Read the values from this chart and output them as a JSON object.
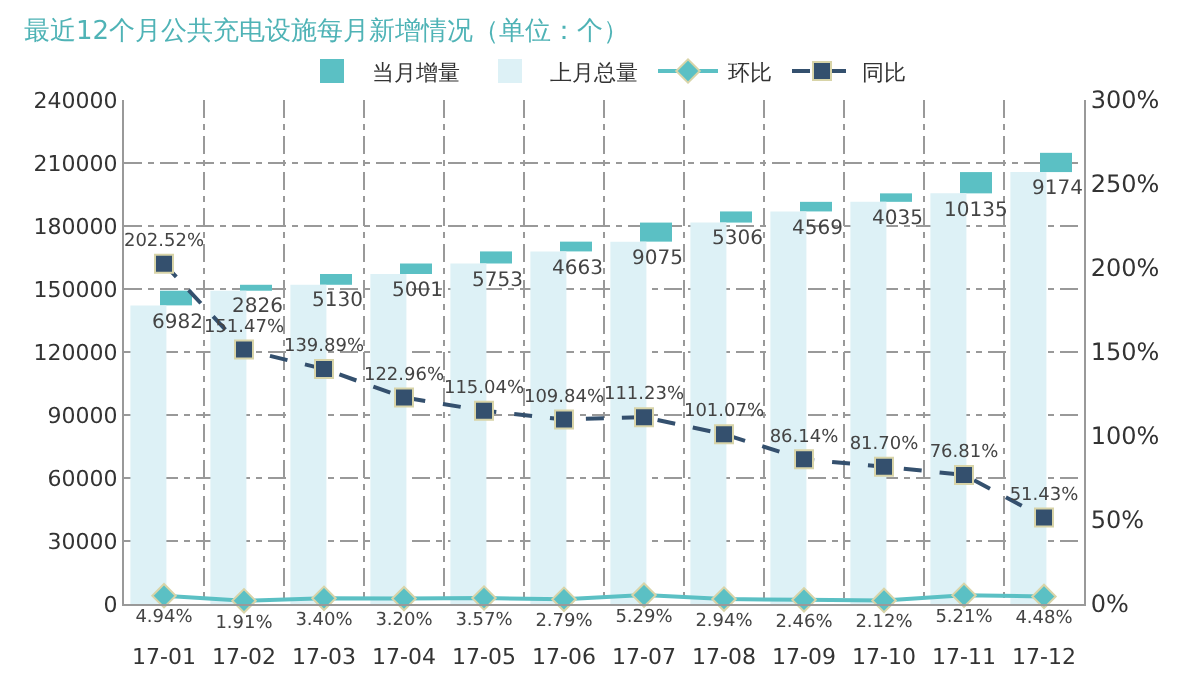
{
  "chart_data": {
    "type": "bar",
    "title": "最近12个月公共充电设施每月新增情况（单位：个）",
    "categories": [
      "17-01",
      "17-02",
      "17-03",
      "17-04",
      "17-05",
      "17-06",
      "17-07",
      "17-08",
      "17-09",
      "17-10",
      "17-11",
      "17-12"
    ],
    "series": [
      {
        "name": "当月增量",
        "color": "#5bc0c4",
        "base": [
          142200,
          149182,
          152008,
          157138,
          162139,
          167892,
          172555,
          181630,
          186936,
          191505,
          195540,
          205675
        ],
        "values": [
          6982,
          2826,
          5130,
          5001,
          5753,
          4663,
          9075,
          5306,
          4569,
          4035,
          10135,
          9174
        ],
        "value_labels": [
          "6982",
          "2826",
          "5130",
          "5001",
          "5753",
          "4663",
          "9075",
          "5306",
          "4569",
          "4035",
          "10135",
          "9174"
        ]
      },
      {
        "name": "上月总量",
        "color": "#ddf1f6",
        "values": [
          142200,
          149182,
          152008,
          157138,
          162139,
          167892,
          172555,
          181630,
          186936,
          191505,
          195540,
          205675
        ]
      },
      {
        "name": "环比",
        "type": "line",
        "axis": "y2",
        "color": "#5bc0c4",
        "marker": "diamond",
        "line_style": "solid",
        "values": [
          4.94,
          1.91,
          3.4,
          3.2,
          3.57,
          2.79,
          5.29,
          2.94,
          2.46,
          2.12,
          5.21,
          4.48
        ],
        "value_labels": [
          "4.94%",
          "1.91%",
          "3.40%",
          "3.20%",
          "3.57%",
          "2.79%",
          "5.29%",
          "2.94%",
          "2.46%",
          "2.12%",
          "5.21%",
          "4.48%"
        ]
      },
      {
        "name": "同比",
        "type": "line",
        "axis": "y2",
        "color": "#34506e",
        "marker": "square",
        "line_style": "dashed",
        "values": [
          202.52,
          151.47,
          139.89,
          122.96,
          115.04,
          109.84,
          111.23,
          101.07,
          86.14,
          81.7,
          76.81,
          51.43
        ],
        "value_labels": [
          "202.52%",
          "151.47%",
          "139.89%",
          "122.96%",
          "115.04%",
          "109.84%",
          "111.23%",
          "101.07%",
          "86.14%",
          "81.70%",
          "76.81%",
          "51.43%"
        ]
      }
    ],
    "ylim": [
      0,
      240000
    ],
    "yticks": [
      0,
      30000,
      60000,
      90000,
      120000,
      150000,
      180000,
      210000,
      240000
    ],
    "y2lim": [
      0,
      300
    ],
    "y2ticks": [
      {
        "value": 0,
        "label": "0%"
      },
      {
        "value": 50,
        "label": "50%"
      },
      {
        "value": 100,
        "label": "100%"
      },
      {
        "value": 150,
        "label": "150%"
      },
      {
        "value": 200,
        "label": "200%"
      },
      {
        "value": 250,
        "label": "250%"
      },
      {
        "value": 300,
        "label": "300%"
      }
    ],
    "grid": true,
    "legend": "top"
  }
}
